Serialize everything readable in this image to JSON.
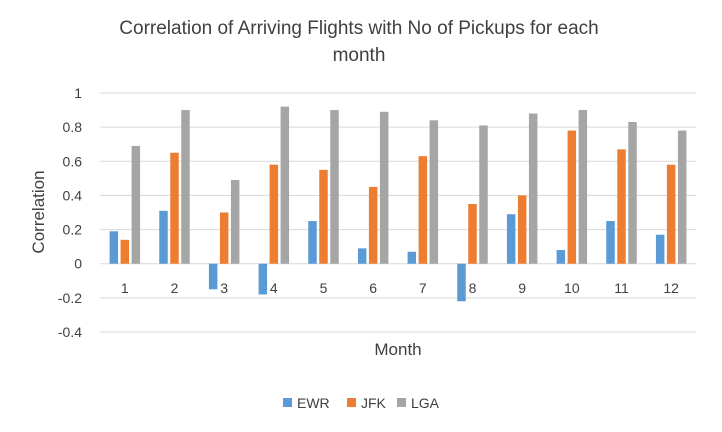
{
  "chart_data": {
    "type": "bar",
    "title": "Correlation of Arriving Flights with No of Pickups for each month",
    "title_lines": [
      "Correlation of Arriving Flights with No of Pickups for each",
      "month"
    ],
    "xlabel": "Month",
    "ylabel": "Correlation",
    "categories": [
      "1",
      "2",
      "3",
      "4",
      "5",
      "6",
      "7",
      "8",
      "9",
      "10",
      "11",
      "12"
    ],
    "ylim": [
      -0.4,
      1
    ],
    "yticks": [
      1,
      0.8,
      0.6,
      0.4,
      0.2,
      0,
      -0.2,
      -0.4
    ],
    "ytick_labels": [
      "1",
      "0.8",
      "0.6",
      "0.4",
      "0.2",
      "0",
      "-0.2",
      "-0.4"
    ],
    "grid": true,
    "legend_position": "bottom",
    "series": [
      {
        "name": "EWR",
        "color": "#5b9bd5",
        "values": [
          0.19,
          0.31,
          -0.15,
          -0.18,
          0.25,
          0.09,
          0.07,
          -0.22,
          0.29,
          0.08,
          0.25,
          0.17
        ]
      },
      {
        "name": "JFK",
        "color": "#ed7d31",
        "values": [
          0.14,
          0.65,
          0.3,
          0.58,
          0.55,
          0.45,
          0.63,
          0.35,
          0.4,
          0.78,
          0.67,
          0.58
        ]
      },
      {
        "name": "LGA",
        "color": "#a5a5a5",
        "values": [
          0.69,
          0.9,
          0.49,
          0.92,
          0.9,
          0.89,
          0.84,
          0.81,
          0.88,
          0.9,
          0.83,
          0.78
        ]
      }
    ]
  }
}
